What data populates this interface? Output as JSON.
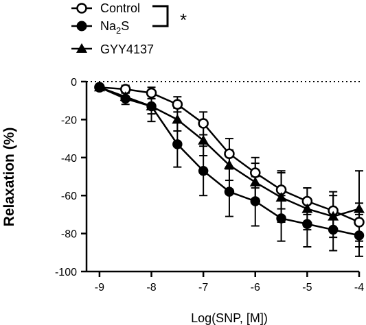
{
  "chart_data": {
    "type": "line",
    "xlabel": "Log(SNP, [M])",
    "ylabel": "Relaxation (%)",
    "xlim": [
      -9.25,
      -4.0
    ],
    "ylim": [
      -100,
      0
    ],
    "x_ticks": [
      -9,
      -8,
      -7,
      -6,
      -5,
      -4
    ],
    "x_tick_labels": [
      "-9",
      "-8",
      "-7",
      "-6",
      "-5",
      "-4"
    ],
    "y_ticks": [
      0,
      -20,
      -40,
      -60,
      -80,
      -100
    ],
    "y_tick_labels": [
      "0",
      "-20",
      "-40",
      "-60",
      "-80",
      "-100"
    ],
    "zero_line": "dotted",
    "grid": false,
    "legend_position": "top-left",
    "significance_marker": "*",
    "x": [
      -9,
      -8.5,
      -8,
      -7.5,
      -7,
      -6.5,
      -6,
      -5.5,
      -5,
      -4.5,
      -4
    ],
    "series": [
      {
        "name": "Control",
        "marker": "circle-open",
        "values": [
          -3,
          -4,
          -6,
          -12,
          -22,
          -38,
          -48,
          -57,
          -63,
          -68,
          -74
        ],
        "errors": [
          1.5,
          2,
          3,
          4,
          6,
          8,
          8,
          10,
          7,
          10,
          10
        ]
      },
      {
        "name": "Na2S",
        "label_main": "Na",
        "label_sub": "2",
        "label_tail": "S",
        "marker": "circle-filled",
        "values": [
          -3,
          -9,
          -13,
          -33,
          -47,
          -58,
          -63,
          -72,
          -75,
          -78,
          -81
        ],
        "errors": [
          1.5,
          3,
          4,
          12,
          13,
          13,
          13,
          12,
          12,
          11,
          11
        ]
      },
      {
        "name": "GYY4137",
        "marker": "triangle-filled",
        "values": [
          -3,
          -8,
          -13,
          -20,
          -31,
          -44,
          -53,
          -61,
          -67,
          -71,
          -67
        ],
        "errors": [
          1.5,
          2,
          8,
          6,
          8,
          8,
          10,
          13,
          11,
          11,
          20
        ]
      }
    ]
  }
}
